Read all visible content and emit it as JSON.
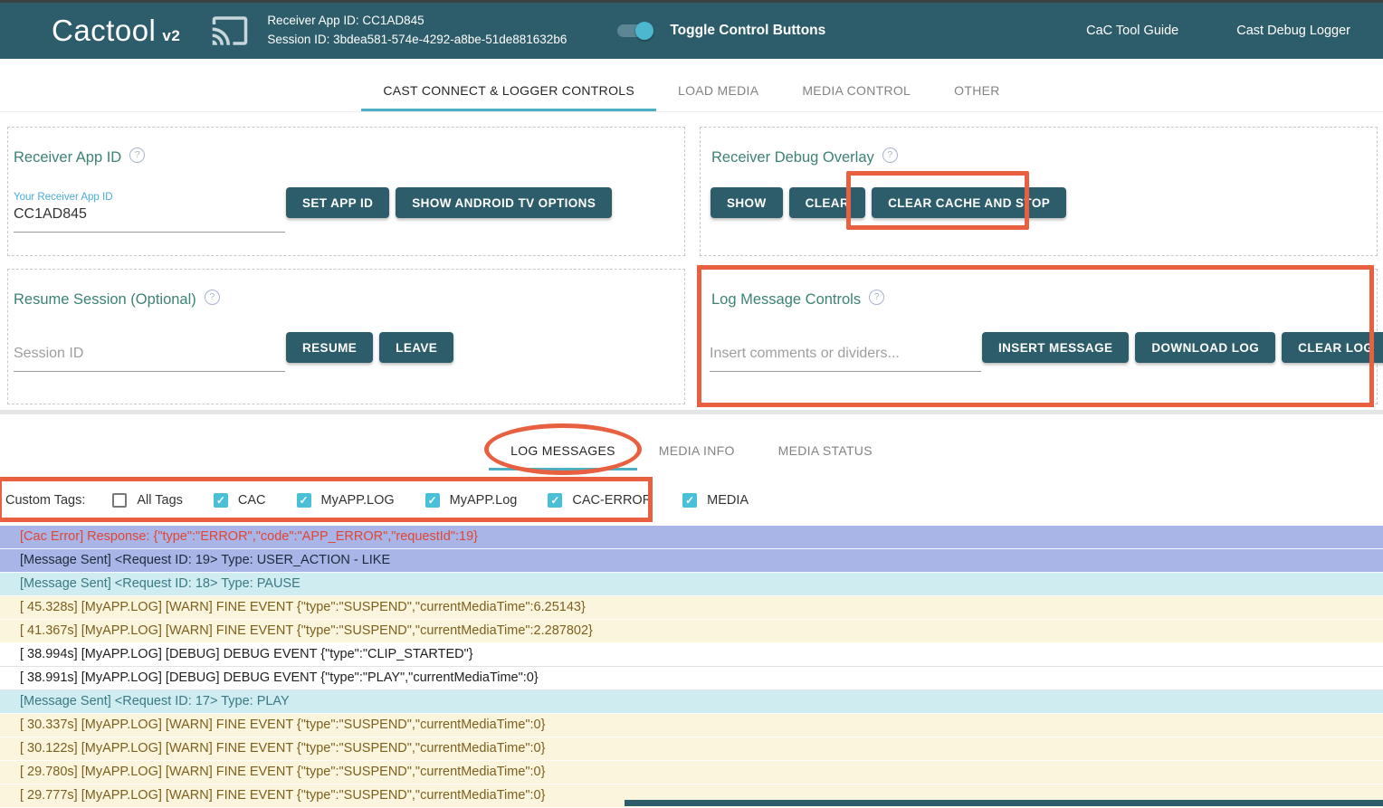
{
  "header": {
    "logo": "Cactool",
    "logo_version": "v2",
    "receiver_line": "Receiver App ID: CC1AD845",
    "session_line": "Session ID: 3bdea581-574e-4292-a8be-51de881632b6",
    "toggle_label": "Toggle Control Buttons",
    "toggle_state": "on",
    "links": [
      {
        "label": "CaC Tool Guide"
      },
      {
        "label": "Cast Debug Logger"
      }
    ]
  },
  "icons": {
    "help": "?",
    "check": "✓",
    "cast": "chromecast-icon"
  },
  "colors": {
    "header_teal": "#2d5d6b",
    "accent_cyan": "#4cb0c3",
    "checkbox_cyan": "#4ac0d8",
    "annotation_orange": "#e8603f",
    "title_green": "#3c8276",
    "label_blue": "#4aacd8",
    "row_message_bg": "#a9b4e7",
    "row_sent_bg": "#cfecf1",
    "row_warn_bg": "#fbf5dd",
    "error_text": "#e04633"
  },
  "tabs_primary": [
    {
      "label": "CAST CONNECT & LOGGER CONTROLS",
      "active": true
    },
    {
      "label": "LOAD MEDIA",
      "active": false
    },
    {
      "label": "MEDIA CONTROL",
      "active": false
    },
    {
      "label": "OTHER",
      "active": false
    }
  ],
  "panels": {
    "receiver_app_id": {
      "title": "Receiver App ID",
      "input_label": "Your Receiver App ID",
      "input_value": "CC1AD845",
      "buttons": [
        {
          "label": "SET APP ID"
        },
        {
          "label": "SHOW ANDROID TV OPTIONS"
        }
      ]
    },
    "receiver_debug_overlay": {
      "title": "Receiver Debug Overlay",
      "buttons": [
        {
          "label": "SHOW"
        },
        {
          "label": "CLEAR"
        },
        {
          "label": "CLEAR CACHE AND STOP"
        }
      ]
    },
    "resume_session": {
      "title": "Resume Session (Optional)",
      "input_placeholder": "Session ID",
      "buttons": [
        {
          "label": "RESUME"
        },
        {
          "label": "LEAVE"
        }
      ]
    },
    "log_message_controls": {
      "title": "Log Message Controls",
      "input_placeholder": "Insert comments or dividers...",
      "buttons": [
        {
          "label": "INSERT MESSAGE"
        },
        {
          "label": "DOWNLOAD LOG"
        },
        {
          "label": "CLEAR LOG"
        }
      ]
    }
  },
  "tabs_secondary": [
    {
      "label": "LOG MESSAGES",
      "active": true
    },
    {
      "label": "MEDIA INFO",
      "active": false
    },
    {
      "label": "MEDIA STATUS",
      "active": false
    }
  ],
  "custom_tags": {
    "label": "Custom Tags:",
    "items": [
      {
        "label": "All Tags",
        "checked": false
      },
      {
        "label": "CAC",
        "checked": true
      },
      {
        "label": "MyAPP.LOG",
        "checked": true
      },
      {
        "label": "MyAPP.Log",
        "checked": true
      },
      {
        "label": "CAC-ERROR",
        "checked": true
      },
      {
        "label": "MEDIA",
        "checked": true
      }
    ]
  },
  "log": {
    "rows": [
      {
        "type": "cac-error",
        "text": "[Cac Error] Response: {\"type\":\"ERROR\",\"code\":\"APP_ERROR\",\"requestId\":19}"
      },
      {
        "type": "sent-dark",
        "text": "[Message Sent] <Request ID: 19> Type: USER_ACTION - LIKE"
      },
      {
        "type": "sent",
        "text": "[Message Sent] <Request ID: 18> Type: PAUSE"
      },
      {
        "type": "warn",
        "text": "[ 45.328s] [MyAPP.LOG] [WARN] FINE EVENT {\"type\":\"SUSPEND\",\"currentMediaTime\":6.25143}"
      },
      {
        "type": "warn",
        "text": "[ 41.367s] [MyAPP.LOG] [WARN] FINE EVENT {\"type\":\"SUSPEND\",\"currentMediaTime\":2.287802}"
      },
      {
        "type": "debug",
        "text": "[ 38.994s] [MyAPP.LOG] [DEBUG] DEBUG EVENT {\"type\":\"CLIP_STARTED\"}"
      },
      {
        "type": "debug",
        "text": "[ 38.991s] [MyAPP.LOG] [DEBUG] DEBUG EVENT {\"type\":\"PLAY\",\"currentMediaTime\":0}"
      },
      {
        "type": "sent",
        "text": "[Message Sent] <Request ID: 17> Type: PLAY"
      },
      {
        "type": "warn",
        "text": "[ 30.337s] [MyAPP.LOG] [WARN] FINE EVENT {\"type\":\"SUSPEND\",\"currentMediaTime\":0}"
      },
      {
        "type": "warn",
        "text": "[ 30.122s] [MyAPP.LOG] [WARN] FINE EVENT {\"type\":\"SUSPEND\",\"currentMediaTime\":0}"
      },
      {
        "type": "warn",
        "text": "[ 29.780s] [MyAPP.LOG] [WARN] FINE EVENT {\"type\":\"SUSPEND\",\"currentMediaTime\":0}"
      },
      {
        "type": "warn",
        "text": "[ 29.777s] [MyAPP.LOG] [WARN] FINE EVENT {\"type\":\"SUSPEND\",\"currentMediaTime\":0}"
      }
    ]
  }
}
